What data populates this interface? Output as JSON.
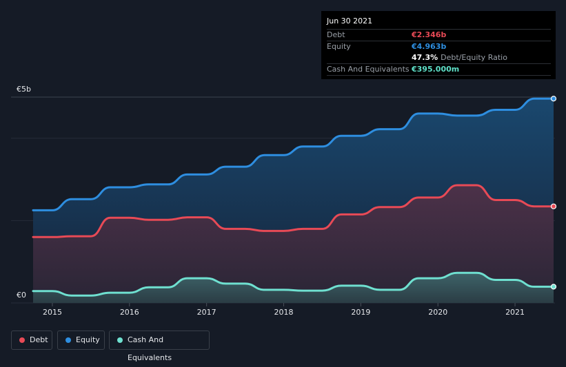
{
  "tooltip": {
    "date": "Jun 30 2021",
    "rows": [
      {
        "label": "Debt",
        "value": "€2.346b"
      },
      {
        "label": "Equity",
        "value": "€4.963b"
      },
      {
        "label": "Cash And Equivalents",
        "value": "€395.000m"
      }
    ],
    "ratio_value": "47.3%",
    "ratio_label": "Debt/Equity Ratio"
  },
  "colors": {
    "debt": "#e84a56",
    "equity": "#2e8ee0",
    "cash": "#6fe0d0",
    "cash_value": "#5fe0c8"
  },
  "legend": [
    {
      "key": "debt",
      "label": "Debt"
    },
    {
      "key": "equity",
      "label": "Equity"
    },
    {
      "key": "cash",
      "label": "Cash And Equivalents"
    }
  ],
  "chart_data": {
    "type": "area",
    "y_tick_labels": {
      "top": "€5b",
      "bottom": "€0"
    },
    "ylim": [
      0,
      5
    ],
    "xlim": [
      2014.75,
      2021.5
    ],
    "x_ticks": [
      2015,
      2016,
      2017,
      2018,
      2019,
      2020,
      2021
    ],
    "x_tick_labels": [
      "2015",
      "2016",
      "2017",
      "2018",
      "2019",
      "2020",
      "2021"
    ],
    "series": [
      {
        "name": "Equity",
        "key": "equity",
        "x": [
          2014.75,
          2015.0,
          2015.25,
          2015.5,
          2015.75,
          2016.0,
          2016.25,
          2016.5,
          2016.75,
          2017.0,
          2017.25,
          2017.5,
          2017.75,
          2018.0,
          2018.25,
          2018.5,
          2018.75,
          2019.0,
          2019.25,
          2019.5,
          2019.75,
          2020.0,
          2020.25,
          2020.5,
          2020.75,
          2021.0,
          2021.25,
          2021.5
        ],
        "values": [
          2.25,
          2.25,
          2.52,
          2.52,
          2.81,
          2.81,
          2.88,
          2.88,
          3.12,
          3.12,
          3.31,
          3.31,
          3.59,
          3.59,
          3.8,
          3.8,
          4.06,
          4.06,
          4.22,
          4.22,
          4.6,
          4.6,
          4.55,
          4.55,
          4.69,
          4.69,
          4.963,
          4.963
        ]
      },
      {
        "name": "Debt",
        "key": "debt",
        "x": [
          2014.75,
          2015.0,
          2015.25,
          2015.5,
          2015.75,
          2016.0,
          2016.25,
          2016.5,
          2016.75,
          2017.0,
          2017.25,
          2017.5,
          2017.75,
          2018.0,
          2018.25,
          2018.5,
          2018.75,
          2019.0,
          2019.25,
          2019.5,
          2019.75,
          2020.0,
          2020.25,
          2020.5,
          2020.75,
          2021.0,
          2021.25,
          2021.5
        ],
        "values": [
          1.6,
          1.6,
          1.62,
          1.62,
          2.07,
          2.07,
          2.02,
          2.02,
          2.08,
          2.08,
          1.8,
          1.8,
          1.75,
          1.75,
          1.8,
          1.8,
          2.15,
          2.15,
          2.33,
          2.33,
          2.56,
          2.56,
          2.86,
          2.86,
          2.5,
          2.5,
          2.346,
          2.346
        ]
      },
      {
        "name": "Cash And Equivalents",
        "key": "cash",
        "x": [
          2014.75,
          2015.0,
          2015.25,
          2015.5,
          2015.75,
          2016.0,
          2016.25,
          2016.5,
          2016.75,
          2017.0,
          2017.25,
          2017.5,
          2017.75,
          2018.0,
          2018.25,
          2018.5,
          2018.75,
          2019.0,
          2019.25,
          2019.5,
          2019.75,
          2020.0,
          2020.25,
          2020.5,
          2020.75,
          2021.0,
          2021.25,
          2021.5
        ],
        "values": [
          0.29,
          0.29,
          0.18,
          0.18,
          0.25,
          0.25,
          0.38,
          0.38,
          0.6,
          0.6,
          0.47,
          0.47,
          0.32,
          0.32,
          0.3,
          0.3,
          0.42,
          0.42,
          0.32,
          0.32,
          0.6,
          0.6,
          0.73,
          0.73,
          0.56,
          0.56,
          0.395,
          0.395
        ]
      }
    ]
  }
}
